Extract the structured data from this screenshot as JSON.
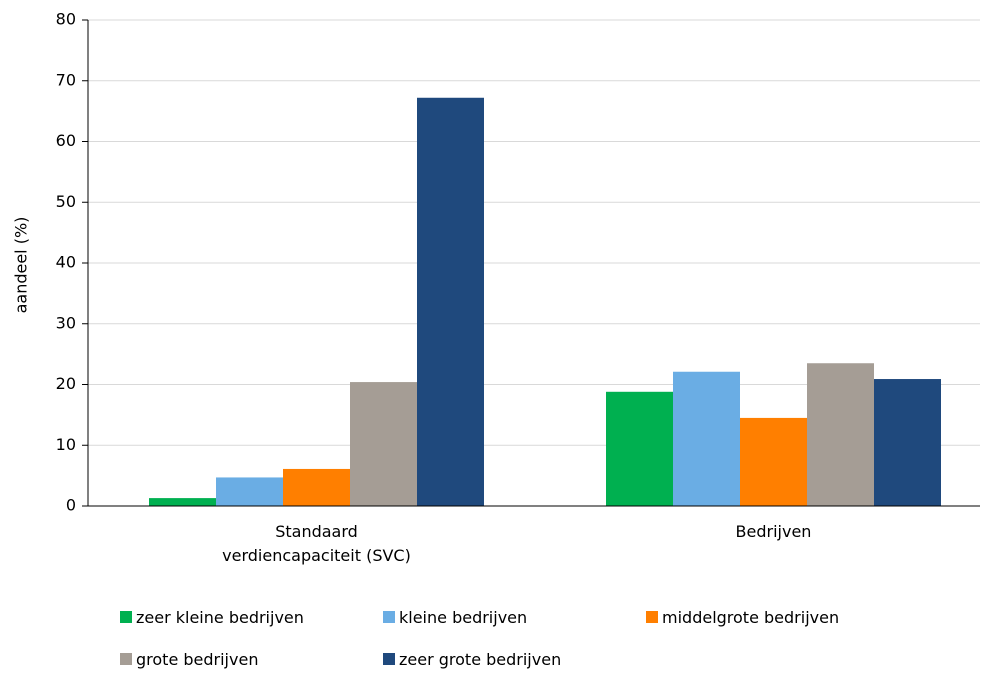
{
  "chart_data": {
    "type": "bar",
    "y_label": "aandeel (%)",
    "categories": [
      "Standaard\nverdiencapaciteit (SVC)",
      "Bedrijven"
    ],
    "series": [
      {
        "name": "zeer kleine bedrijven",
        "color": "#00b050",
        "values": [
          1.3,
          18.8
        ]
      },
      {
        "name": "kleine bedrijven",
        "color": "#6aade4",
        "values": [
          4.7,
          22.1
        ]
      },
      {
        "name": "middelgrote bedrijven",
        "color": "#ff7f00",
        "values": [
          6.1,
          14.5
        ]
      },
      {
        "name": "grote bedrijven",
        "color": "#a59d95",
        "values": [
          20.4,
          23.5
        ]
      },
      {
        "name": "zeer grote bedrijven",
        "color": "#1f497d",
        "values": [
          67.2,
          20.9
        ]
      }
    ],
    "ylim": [
      0,
      80
    ],
    "yticks": [
      0,
      10,
      20,
      30,
      40,
      50,
      60,
      70,
      80
    ],
    "grid": true
  }
}
